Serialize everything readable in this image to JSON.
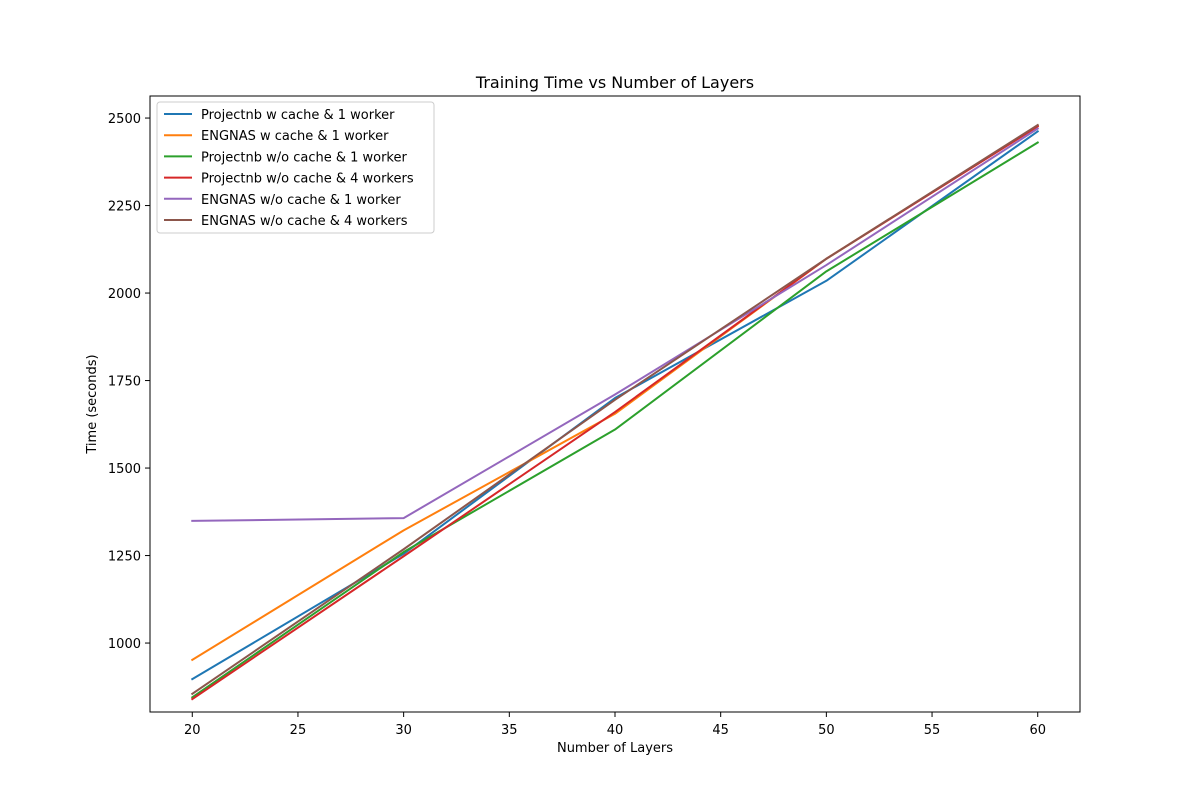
{
  "chart_data": {
    "type": "line",
    "title": "Training Time vs Number of Layers",
    "xlabel": "Number of Layers",
    "ylabel": "Time (seconds)",
    "xlim": [
      18,
      62
    ],
    "ylim": [
      803,
      2563
    ],
    "xticks": [
      20,
      25,
      30,
      35,
      40,
      45,
      50,
      55,
      60
    ],
    "yticks": [
      1000,
      1250,
      1500,
      1750,
      2000,
      2250,
      2500
    ],
    "x": [
      20,
      30,
      40,
      50,
      60
    ],
    "legend_position": "upper-left",
    "grid": false,
    "series": [
      {
        "name": "Projectnb w cache & 1 worker",
        "color": "#1f77b4",
        "values": [
          897,
          1255,
          1700,
          2035,
          2462
        ]
      },
      {
        "name": "ENGNAS w cache & 1 worker",
        "color": "#ff7f0e",
        "values": [
          952,
          1322,
          1655,
          2098,
          2478
        ]
      },
      {
        "name": "Projectnb w/o cache & 1 worker",
        "color": "#2ca02c",
        "values": [
          845,
          1260,
          1610,
          2062,
          2430
        ]
      },
      {
        "name": "Projectnb w/o cache & 4 workers",
        "color": "#d62728",
        "values": [
          840,
          1248,
          1660,
          2098,
          2476
        ]
      },
      {
        "name": "ENGNAS w/o cache & 1 worker",
        "color": "#9467bd",
        "values": [
          1349,
          1357,
          1710,
          2080,
          2470
        ]
      },
      {
        "name": "ENGNAS w/o cache & 4 workers",
        "color": "#8c564b",
        "values": [
          855,
          1268,
          1695,
          2098,
          2480
        ]
      }
    ]
  }
}
